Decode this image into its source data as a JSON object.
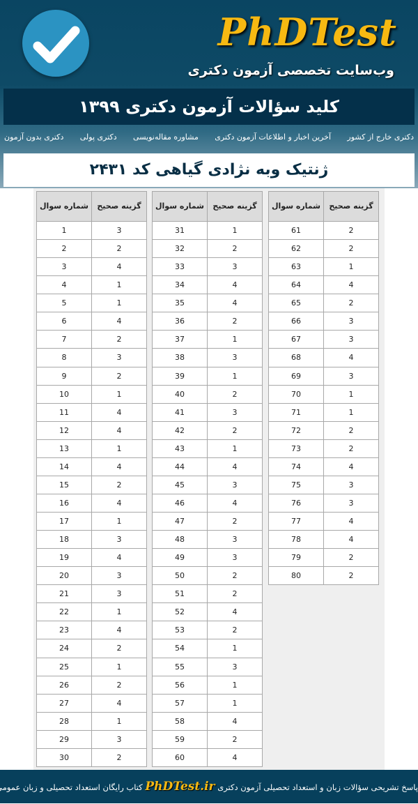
{
  "header": {
    "logo": "PhDTest",
    "tagline": "وب‌سایت تخصصی آزمون دکتری",
    "title": "کلید  سؤالات آزمون دکتری ۱۳۹۹",
    "subtitle": "ژنتیک وبه نژادی گیاهی کد ۲۴۳۱"
  },
  "nav": [
    "دکتری بدون آزمون",
    "دکتری پولی",
    "مشاوره مقاله‌نویسی",
    "آخرین اخبار و اطلاعات آزمون دکتری",
    "دکتری خارج از کشور"
  ],
  "table_headers": {
    "question": "شماره سوال",
    "answer": "گزینه صحیح"
  },
  "answers": [
    3,
    2,
    4,
    1,
    1,
    4,
    2,
    3,
    2,
    1,
    4,
    4,
    1,
    4,
    2,
    4,
    1,
    3,
    4,
    3,
    3,
    1,
    4,
    2,
    1,
    2,
    4,
    1,
    3,
    2,
    1,
    2,
    3,
    4,
    4,
    2,
    1,
    3,
    1,
    2,
    3,
    2,
    1,
    4,
    3,
    4,
    2,
    3,
    3,
    2,
    2,
    4,
    2,
    1,
    3,
    1,
    1,
    4,
    2,
    4,
    2,
    2,
    1,
    4,
    2,
    3,
    3,
    4,
    3,
    1,
    1,
    2,
    2,
    4,
    3,
    3,
    4,
    4,
    2,
    2
  ],
  "footer": {
    "left": "پاسخ تشریحی سؤالات زبان و استعداد تحصیلی آزمون دکتری",
    "site": "PhDTest.ir",
    "right": "کتاب رایگان استعداد تحصیلی و زبان عمومی"
  },
  "colors": {
    "header_bg": "#0a4562",
    "logo": "#f7b912",
    "title_bg": "#04304a",
    "check": "#2b93c2"
  }
}
